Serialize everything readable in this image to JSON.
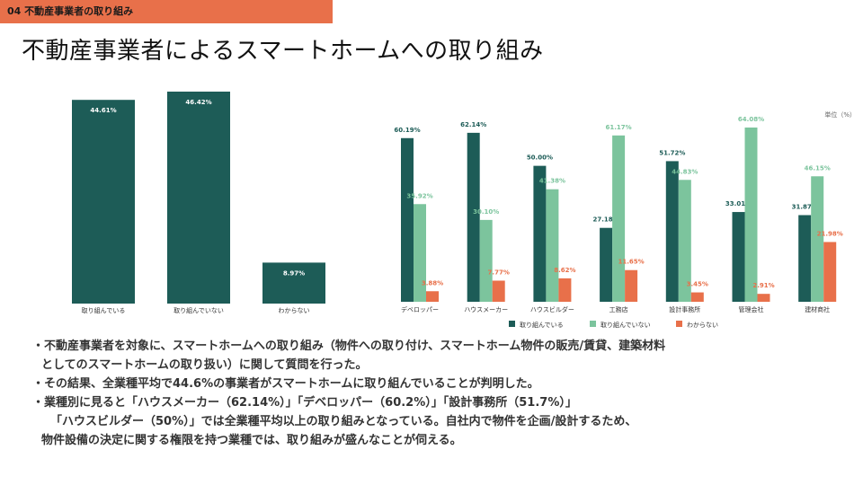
{
  "header": {
    "section_tag": "04 不動産事業者の取り組み",
    "title": "不動産事業者によるスマートホームへの取り組み"
  },
  "colors": {
    "accent": "#e8704a",
    "dark_teal": "#1d5c57",
    "light_green": "#7cc49d",
    "orange": "#e8704a"
  },
  "chart_data": [
    {
      "type": "bar",
      "title": "",
      "categories": [
        "取り組んでいる",
        "取り組んでいない",
        "わからない"
      ],
      "values": [
        44.61,
        46.42,
        8.97
      ],
      "value_labels": [
        "44.61%",
        "46.42%",
        "8.97%"
      ],
      "ylim": [
        0,
        46.42
      ]
    },
    {
      "type": "bar",
      "unit_label": "単位（%）",
      "categories": [
        "デベロッパー",
        "ハウスメーカー",
        "ハウスビルダー",
        "工務店",
        "設計事務所",
        "管理会社",
        "建材商社"
      ],
      "series": [
        {
          "name": "取り組んでいる",
          "values": [
            60.19,
            62.14,
            50.0,
            27.18,
            51.72,
            33.01,
            31.87
          ],
          "labels": [
            "60.19%",
            "62.14%",
            "50.00%",
            "27.18%",
            "51.72%",
            "33.01%",
            "31.87%"
          ]
        },
        {
          "name": "取り組んでいない",
          "values": [
            35.92,
            30.1,
            41.38,
            61.17,
            44.83,
            64.08,
            46.15
          ],
          "labels": [
            "35.92%",
            "30.10%",
            "41.38%",
            "61.17%",
            "44.83%",
            "64.08%",
            "46.15%"
          ]
        },
        {
          "name": "わからない",
          "values": [
            3.88,
            7.77,
            8.62,
            11.65,
            3.45,
            2.91,
            21.98
          ],
          "labels": [
            "3.88%",
            "7.77%",
            "8.62%",
            "11.65%",
            "3.45%",
            "2.91%",
            "21.98%"
          ]
        }
      ],
      "ylim": [
        0,
        64.08
      ]
    }
  ],
  "notes": [
    "・不動産事業者を対象に、スマートホームへの取り組み（物件への取り付け、スマートホーム物件の販売/賃貸、建築材料",
    "としてのスマートホームの取り扱い）に関して質問を行った。",
    "・その結果、全業種平均で44.6%の事業者がスマートホームに取り組んでいることが判明した。",
    "・業種別に見ると「ハウスメーカー（62.14%）」「デベロッパー（60.2%）」「設計事務所（51.7%）」",
    "「ハウスビルダー（50%）」では全業種平均以上の取り組みとなっている。自社内で物件を企画/設計するため、",
    "物件設備の決定に関する権限を持つ業種では、取り組みが盛んなことが伺える。"
  ]
}
